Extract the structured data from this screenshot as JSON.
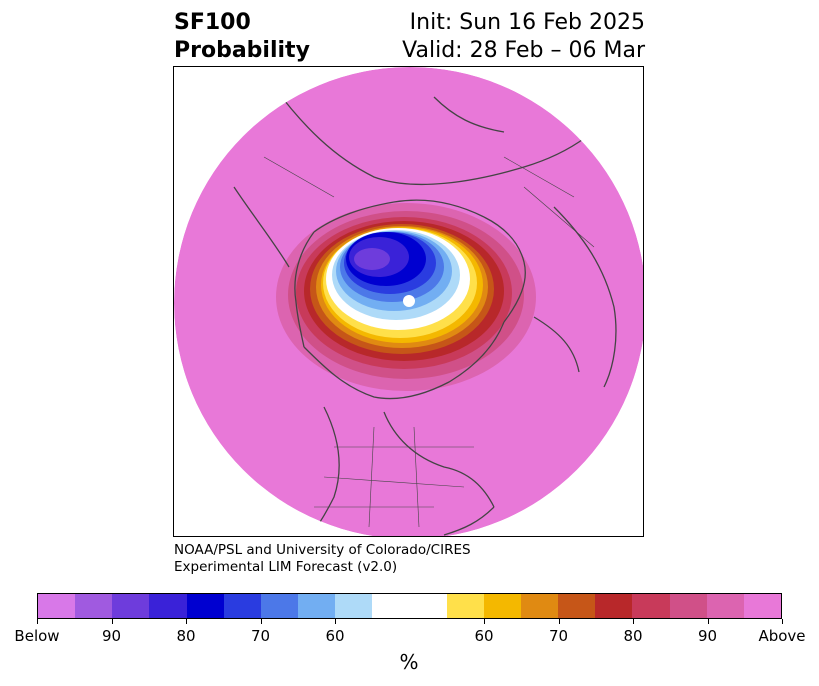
{
  "title": {
    "left_line1": "SF100",
    "left_line2": "Probability",
    "right_line1": "Init: Sun 16 Feb 2025",
    "right_line2": "Valid: 28 Feb – 06 Mar"
  },
  "credit": {
    "line1": "NOAA/PSL and University of Colorado/CIRES",
    "line2": "Experimental LIM Forecast (v2.0)"
  },
  "colorbar": {
    "unit": "%",
    "colors": [
      "#d878e8",
      "#a05ae0",
      "#6e3cdc",
      "#3a22d8",
      "#0000d0",
      "#2a3ce0",
      "#4c78e8",
      "#72aef2",
      "#aedaf8",
      "#ffffff",
      "#ffe04a",
      "#f4b800",
      "#e08a12",
      "#c65618",
      "#b8282a",
      "#c83a5a",
      "#d05088",
      "#dc64b0",
      "#e878d8"
    ],
    "labels": [
      "Below",
      "90",
      "80",
      "70",
      "60",
      "60",
      "70",
      "80",
      "90",
      "Above"
    ]
  },
  "map": {
    "background_fill": "#e878d8",
    "projection": "polar-stereographic"
  }
}
